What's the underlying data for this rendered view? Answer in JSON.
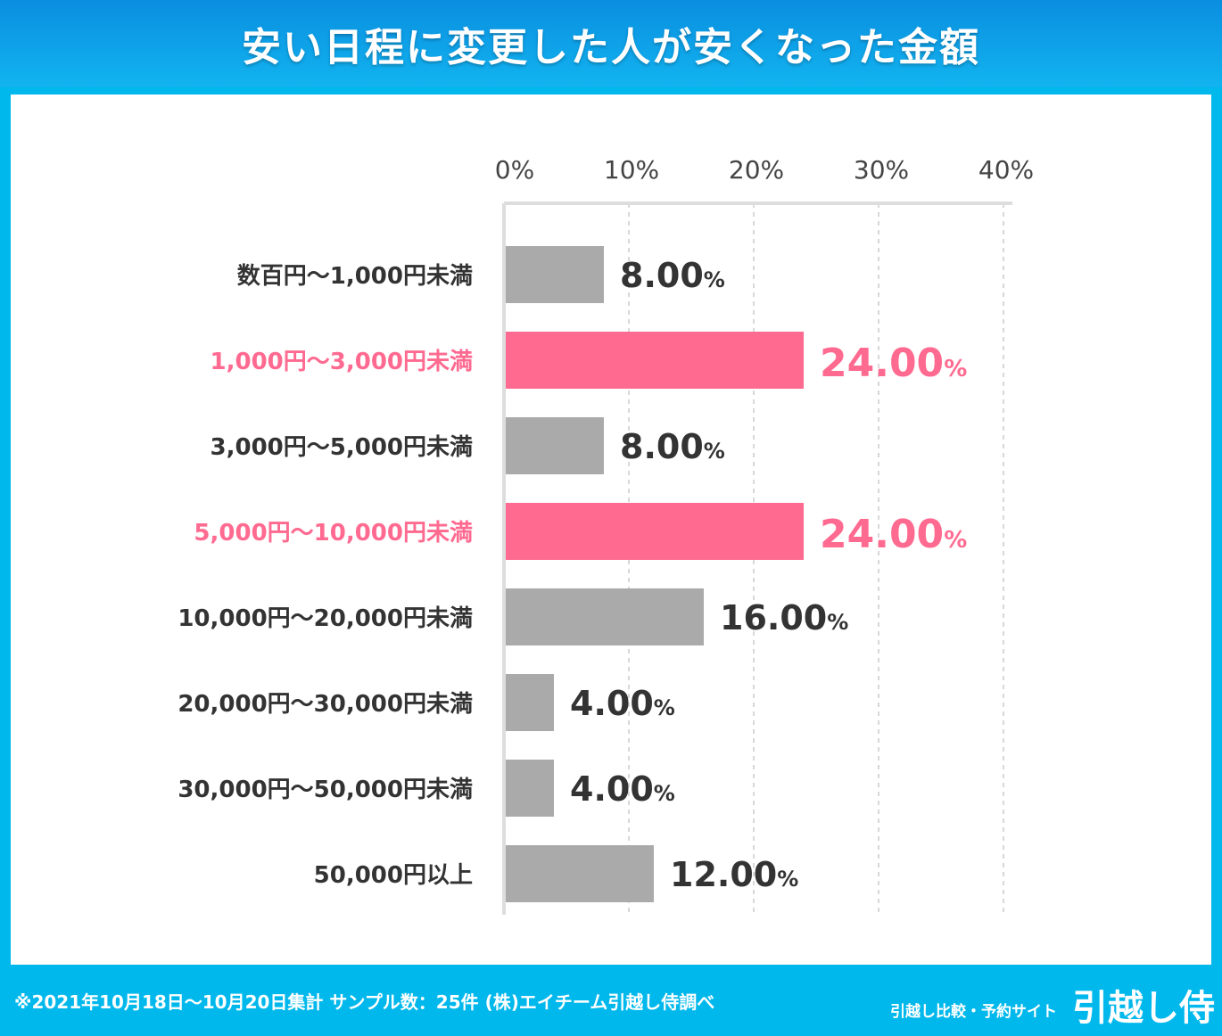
{
  "header": {
    "title": "安い日程に変更した人が安くなった金額"
  },
  "footer": {
    "note": "※2021年10月18日〜10月20日集計 サンプル数：25件 (株)エイチーム引越し侍調べ",
    "brand_sub": "引越し比較・予約サイト",
    "brand": "引越し侍"
  },
  "colors": {
    "gray": "#aaaaaa",
    "pink": "#ff6a90",
    "label": "#333333"
  },
  "chart_data": {
    "type": "bar",
    "orientation": "horizontal",
    "title": "安い日程に変更した人が安くなった金額",
    "xlabel": "",
    "ylabel": "",
    "xlim": [
      0,
      40
    ],
    "xticks": [
      "0%",
      "10%",
      "20%",
      "30%",
      "40%"
    ],
    "grid": true,
    "categories": [
      "数百円〜1,000円未満",
      "1,000円〜3,000円未満",
      "3,000円〜5,000円未満",
      "5,000円〜10,000円未満",
      "10,000円〜20,000円未満",
      "20,000円〜30,000円未満",
      "30,000円〜50,000円未満",
      "50,000円以上"
    ],
    "values": [
      8,
      24,
      8,
      24,
      16,
      4,
      4,
      12
    ],
    "labels": [
      "8.00",
      "24.00",
      "8.00",
      "24.00",
      "16.00",
      "4.00",
      "4.00",
      "12.00"
    ],
    "highlight": [
      false,
      true,
      false,
      true,
      false,
      false,
      false,
      false
    ]
  }
}
